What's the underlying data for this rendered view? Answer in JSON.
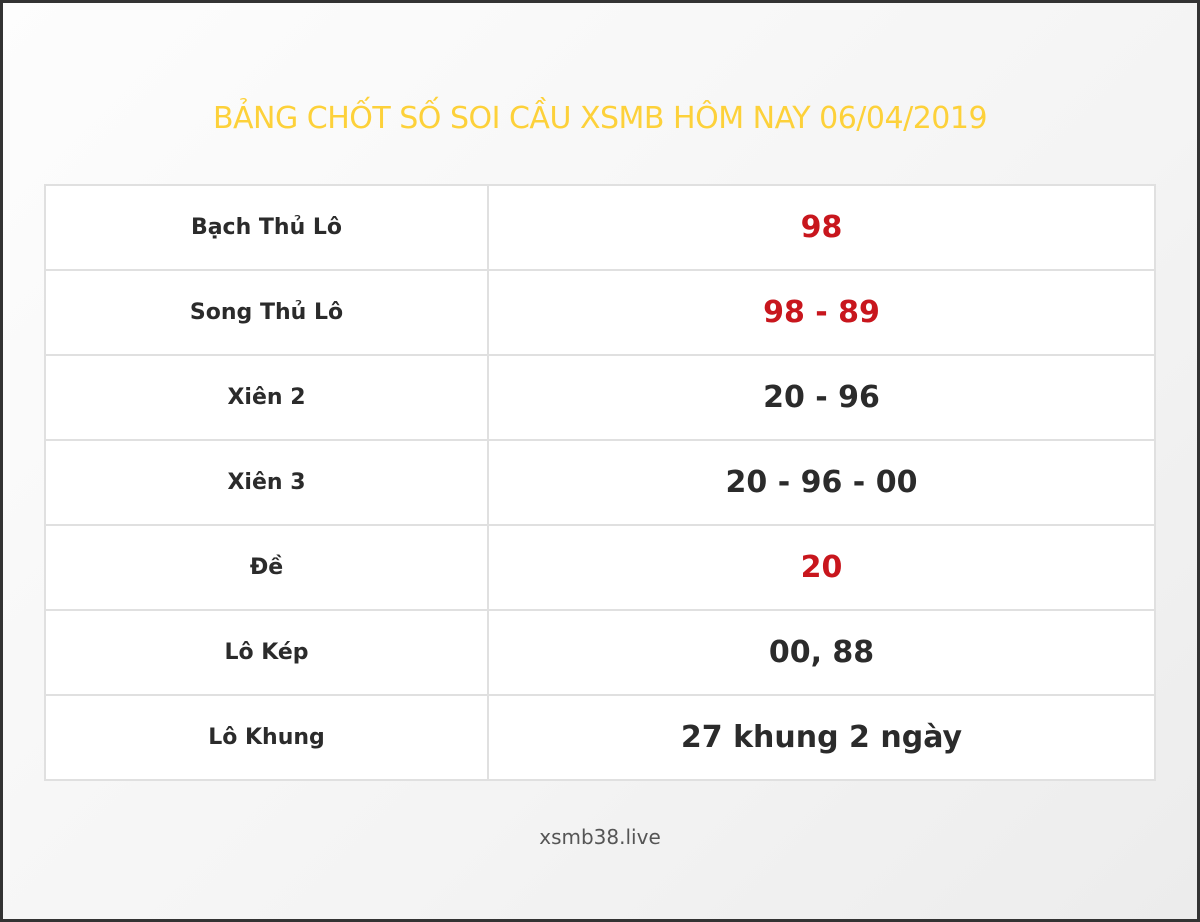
{
  "title": "BẢNG CHỐT SỐ SOI CẦU XSMB HÔM NAY 06/04/2019",
  "colors": {
    "title": "#fdd13a",
    "highlight": "#c8161d",
    "normal": "#2b2b2b"
  },
  "rows": [
    {
      "label": "Bạch Thủ Lô",
      "value": "98",
      "highlight": true
    },
    {
      "label": "Song Thủ Lô",
      "value": "98 - 89",
      "highlight": true
    },
    {
      "label": "Xiên 2",
      "value": "20 - 96",
      "highlight": false
    },
    {
      "label": "Xiên 3",
      "value": "20 - 96 - 00",
      "highlight": false
    },
    {
      "label": "Đề",
      "value": "20",
      "highlight": true
    },
    {
      "label": "Lô Kép",
      "value": "00, 88",
      "highlight": false
    },
    {
      "label": "Lô Khung",
      "value": "27 khung 2 ngày",
      "highlight": false
    }
  ],
  "footer": "xsmb38.live"
}
